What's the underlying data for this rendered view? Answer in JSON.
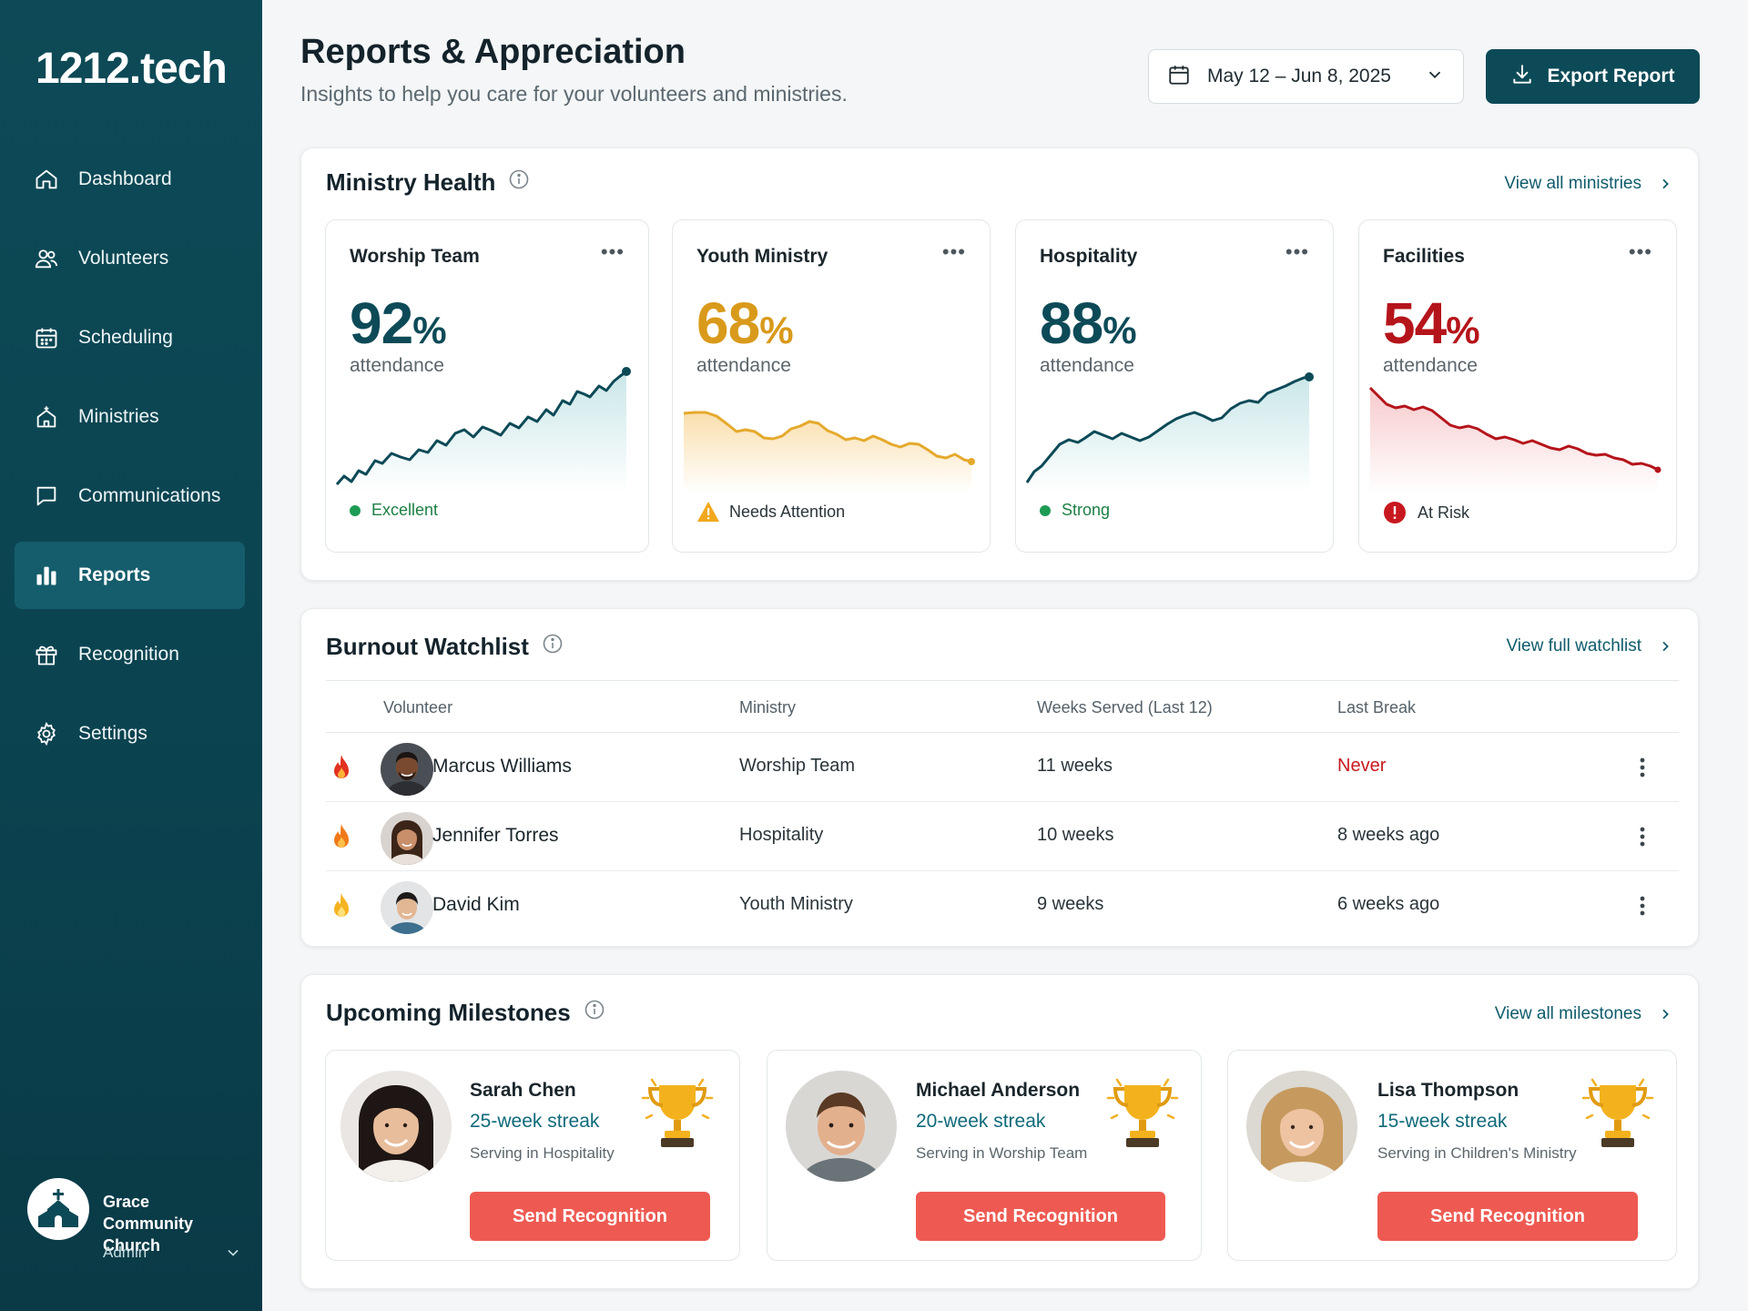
{
  "brand": "1212.tech",
  "nav": [
    {
      "label": "Dashboard",
      "icon": "home-icon"
    },
    {
      "label": "Volunteers",
      "icon": "users-icon"
    },
    {
      "label": "Scheduling",
      "icon": "calendar-icon"
    },
    {
      "label": "Ministries",
      "icon": "church-icon"
    },
    {
      "label": "Communications",
      "icon": "chat-icon"
    },
    {
      "label": "Reports",
      "icon": "bar-chart-icon",
      "active": true
    },
    {
      "label": "Recognition",
      "icon": "gift-icon"
    },
    {
      "label": "Settings",
      "icon": "gear-icon"
    }
  ],
  "org": {
    "name": "Grace Community Church",
    "role": "Admin"
  },
  "header": {
    "title": "Reports & Appreciation",
    "subtitle": "Insights to help you care for your volunteers and ministries.",
    "date_range": "May 12 – Jun 8, 2025",
    "export_label": "Export Report"
  },
  "ministry_health": {
    "title": "Ministry Health",
    "link": "View all ministries",
    "tiles": [
      {
        "name": "Worship Team",
        "value": "92",
        "unit": "%",
        "sub": "attendance",
        "status": "Excellent",
        "color": "#0d4a57",
        "status_color": "#1d9b54",
        "status_icon": "dot"
      },
      {
        "name": "Youth Ministry",
        "value": "68",
        "unit": "%",
        "sub": "attendance",
        "status": "Needs Attention",
        "color": "#d99a1b",
        "status_color": "#f1a81c",
        "status_icon": "warning"
      },
      {
        "name": "Hospitality",
        "value": "88",
        "unit": "%",
        "sub": "attendance",
        "status": "Strong",
        "color": "#0d4a57",
        "status_color": "#1d9b54",
        "status_icon": "dot"
      },
      {
        "name": "Facilities",
        "value": "54",
        "unit": "%",
        "sub": "attendance",
        "status": "At Risk",
        "color": "#b5141b",
        "status_color": "#c8181f",
        "status_icon": "alert"
      }
    ]
  },
  "burnout": {
    "title": "Burnout Watchlist",
    "link": "View full watchlist",
    "columns": [
      "Volunteer",
      "Ministry",
      "Weeks Served (Last 12)",
      "Last Break"
    ],
    "rows": [
      {
        "name": "Marcus Williams",
        "ministry": "Worship Team",
        "weeks": "11 weeks",
        "last_break": "Never",
        "flame": "#e2311f",
        "break_color": "#c8181f"
      },
      {
        "name": "Jennifer Torres",
        "ministry": "Hospitality",
        "weeks": "10 weeks",
        "last_break": "8 weeks ago",
        "flame": "#f07a1a",
        "break_color": "#2a353b"
      },
      {
        "name": "David Kim",
        "ministry": "Youth Ministry",
        "weeks": "9 weeks",
        "last_break": "6 weeks ago",
        "flame": "#f5b320",
        "break_color": "#2a353b"
      }
    ]
  },
  "milestones": {
    "title": "Upcoming Milestones",
    "link": "View all milestones",
    "button": "Send Recognition",
    "items": [
      {
        "name": "Sarah Chen",
        "streak": "25-week streak",
        "serving": "Serving in Hospitality"
      },
      {
        "name": "Michael Anderson",
        "streak": "20-week streak",
        "serving": "Serving in Worship Team"
      },
      {
        "name": "Lisa Thompson",
        "streak": "15-week streak",
        "serving": "Serving in Children's Ministry"
      }
    ]
  }
}
